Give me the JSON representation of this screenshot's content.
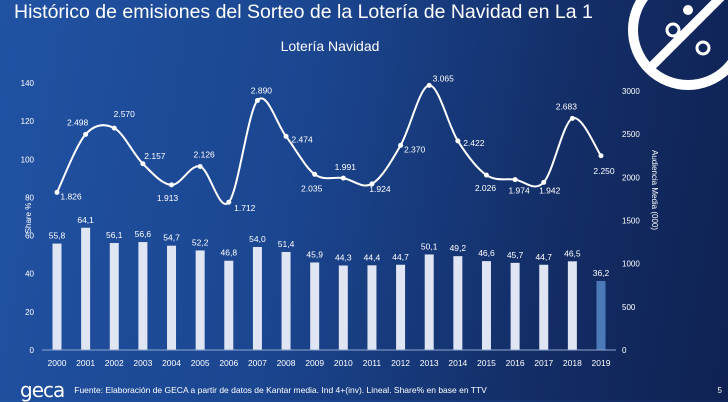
{
  "title": "Histórico de emisiones del Sorteo de la Lotería de Navidad en La 1",
  "footer": {
    "logo": "geca",
    "source": "Fuente: Elaboración de GECA a partir de datos de Kantar media. Ind 4+(inv). Lineal. Share% en base en TTV",
    "page": "5"
  },
  "chart_data": {
    "type": "bar+line",
    "title": "Lotería Navidad",
    "categories": [
      "2000",
      "2001",
      "2002",
      "2003",
      "2004",
      "2005",
      "2006",
      "2007",
      "2008",
      "2009",
      "2010",
      "2011",
      "2012",
      "2013",
      "2014",
      "2015",
      "2016",
      "2017",
      "2018",
      "2019"
    ],
    "left_axis": {
      "label": "Share %",
      "range": [
        0,
        140
      ],
      "ticks": [
        "0",
        "20",
        "40",
        "60",
        "80",
        "100",
        "120",
        "140"
      ]
    },
    "right_axis": {
      "label": "Audiencia Media (000)",
      "range": [
        0,
        3000
      ],
      "ticks": [
        "0",
        "500",
        "1000",
        "1500",
        "2000",
        "2500",
        "3000"
      ]
    },
    "series": [
      {
        "name": "Share %",
        "type": "bar",
        "axis": "left",
        "values": [
          55.8,
          64.1,
          56.1,
          56.6,
          54.7,
          52.2,
          46.8,
          54.0,
          51.4,
          45.9,
          44.3,
          44.4,
          44.7,
          50.1,
          49.2,
          46.6,
          45.7,
          44.7,
          46.5,
          36.2
        ],
        "labels": [
          "55,8",
          "64,1",
          "56,1",
          "56,6",
          "54,7",
          "52,2",
          "46,8",
          "54,0",
          "51,4",
          "45,9",
          "44,3",
          "44,4",
          "44,7",
          "50,1",
          "49,2",
          "46,6",
          "45,7",
          "44,7",
          "46,5",
          "36,2"
        ],
        "color": "#dfe5f2",
        "highlight_color": "#4a7ab8"
      },
      {
        "name": "Audiencia Media (000)",
        "type": "line",
        "axis": "right",
        "values": [
          1826,
          2498,
          2570,
          2157,
          1913,
          2126,
          1712,
          2890,
          2474,
          2035,
          1991,
          1924,
          2370,
          3065,
          2422,
          2026,
          1974,
          1942,
          2683,
          2250
        ],
        "labels": [
          "1.826",
          "2.498",
          "2.570",
          "2.157",
          "1.913",
          "2.126",
          "1.712",
          "2.890",
          "2.474",
          "2.035",
          "1.991",
          "1.924",
          "2.370",
          "3.065",
          "2.422",
          "2.026",
          "1.974",
          "1.942",
          "2.683",
          "2.250"
        ],
        "color": "#ffffff"
      }
    ],
    "grid": false
  }
}
